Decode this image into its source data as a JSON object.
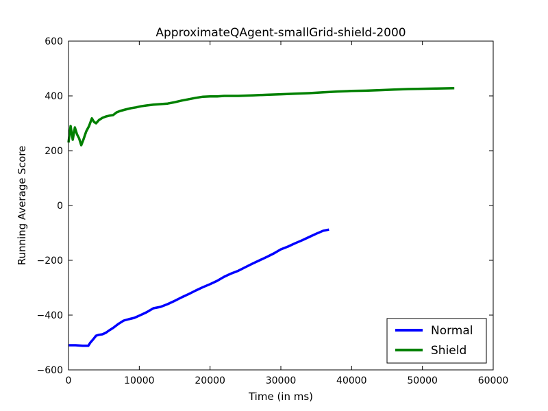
{
  "chart_data": {
    "type": "line",
    "title": "ApproximateQAgent-smallGrid-shield-2000",
    "xlabel": "Time (in ms)",
    "ylabel": "Running Average Score",
    "xlim": [
      0,
      60000
    ],
    "ylim": [
      -600,
      600
    ],
    "xticks": [
      0,
      10000,
      20000,
      30000,
      40000,
      50000,
      60000
    ],
    "xtick_labels": [
      "0",
      "10000",
      "20000",
      "30000",
      "40000",
      "50000",
      "60000"
    ],
    "yticks": [
      600,
      400,
      200,
      0,
      -200,
      -400,
      -600
    ],
    "ytick_labels": [
      "600",
      "400",
      "200",
      "0",
      "−200",
      "−400",
      "−600"
    ],
    "grid": false,
    "legend_position": "lower-right",
    "series": [
      {
        "name": "Normal",
        "color": "#0000ff",
        "x": [
          0,
          1000,
          2000,
          2800,
          3100,
          3500,
          3900,
          4300,
          4800,
          5300,
          5800,
          6300,
          7000,
          7800,
          8500,
          9300,
          10000,
          11000,
          12000,
          13000,
          14000,
          15000,
          16000,
          17000,
          18000,
          19000,
          20000,
          21000,
          22000,
          23000,
          24000,
          25000,
          26000,
          27000,
          28000,
          29000,
          30000,
          31000,
          32000,
          33000,
          34000,
          35000,
          36000,
          36800
        ],
        "y": [
          -510,
          -510,
          -512,
          -512,
          -500,
          -488,
          -475,
          -472,
          -470,
          -464,
          -455,
          -447,
          -433,
          -420,
          -415,
          -410,
          -402,
          -390,
          -375,
          -370,
          -360,
          -348,
          -335,
          -323,
          -310,
          -298,
          -287,
          -275,
          -260,
          -248,
          -238,
          -225,
          -212,
          -200,
          -188,
          -175,
          -160,
          -150,
          -138,
          -127,
          -115,
          -103,
          -92,
          -88
        ]
      },
      {
        "name": "Shield",
        "color": "#008000",
        "x": [
          0,
          300,
          600,
          900,
          1200,
          1500,
          1800,
          2100,
          2500,
          2900,
          3300,
          3600,
          3900,
          4300,
          4800,
          5300,
          5800,
          6300,
          6800,
          7300,
          8000,
          8800,
          9500,
          10200,
          11000,
          12000,
          13000,
          14000,
          15000,
          16000,
          17000,
          18000,
          19000,
          20000,
          21000,
          22000,
          23000,
          24000,
          25000,
          26000,
          27000,
          28000,
          30000,
          32000,
          34000,
          36000,
          38000,
          40000,
          42000,
          44000,
          46000,
          48000,
          50000,
          52000,
          54500
        ],
        "y": [
          230,
          290,
          240,
          285,
          260,
          245,
          220,
          240,
          270,
          290,
          318,
          305,
          300,
          312,
          320,
          325,
          328,
          330,
          340,
          345,
          350,
          355,
          358,
          362,
          365,
          368,
          370,
          372,
          377,
          383,
          388,
          393,
          397,
          398,
          398,
          400,
          400,
          400,
          401,
          402,
          403,
          404,
          406,
          408,
          410,
          413,
          416,
          418,
          419,
          421,
          423,
          425,
          426,
          427,
          428
        ]
      }
    ]
  }
}
